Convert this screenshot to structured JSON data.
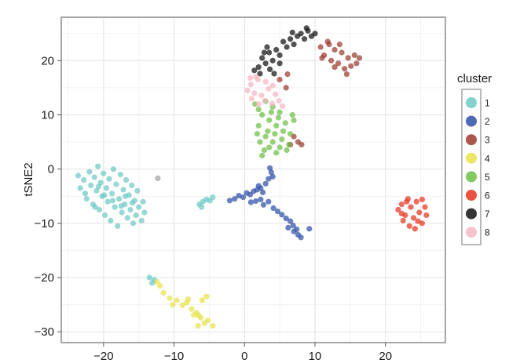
{
  "chart_data": {
    "type": "scatter",
    "title": "",
    "xlabel": "",
    "ylabel": "tSNE2",
    "xlim": [
      -26,
      28.5
    ],
    "ylim": [
      -32,
      28
    ],
    "xticks": [
      -20,
      -10,
      0,
      10,
      20
    ],
    "yticks": [
      20,
      10,
      0,
      -10,
      -20,
      -30
    ],
    "xtick_labels": [
      "−20",
      "−10",
      "0",
      "10",
      "20"
    ],
    "ytick_labels": [
      "20",
      "10",
      "0",
      "−10",
      "−20",
      "−30"
    ],
    "grid": true,
    "legend": {
      "title": "cluster",
      "position": "right",
      "entries": [
        {
          "label": "1",
          "color": "#6ec9c4"
        },
        {
          "label": "2",
          "color": "#2f4fa8"
        },
        {
          "label": "3",
          "color": "#9b3a2e"
        },
        {
          "label": "4",
          "color": "#e8e24a"
        },
        {
          "label": "5",
          "color": "#6cbf45"
        },
        {
          "label": "6",
          "color": "#e8331f"
        },
        {
          "label": "7",
          "color": "#111111"
        },
        {
          "label": "8",
          "color": "#f6b6c4"
        }
      ]
    },
    "series": [
      {
        "name": "1",
        "color": "#6ec9c4",
        "points": [
          [
            -23.3,
            -3.5
          ],
          [
            -22.8,
            -2
          ],
          [
            -22.4,
            -5.5
          ],
          [
            -22,
            -0.5
          ],
          [
            -21.8,
            -3
          ],
          [
            -21.5,
            -6.5
          ],
          [
            -21.3,
            -1.5
          ],
          [
            -21,
            -4
          ],
          [
            -20.8,
            0.5
          ],
          [
            -20.6,
            -7.5
          ],
          [
            -20.4,
            -2.5
          ],
          [
            -20.2,
            -5
          ],
          [
            -20,
            -0.8
          ],
          [
            -19.8,
            -8.5
          ],
          [
            -19.6,
            -3.5
          ],
          [
            -19.4,
            -6
          ],
          [
            -19.2,
            -1.8
          ],
          [
            -19,
            -9.5
          ],
          [
            -18.8,
            -4.5
          ],
          [
            -18.6,
            0
          ],
          [
            -18.4,
            -7
          ],
          [
            -18.2,
            -2.8
          ],
          [
            -18,
            -10.5
          ],
          [
            -17.8,
            -5.5
          ],
          [
            -17.6,
            -1
          ],
          [
            -17.4,
            -8
          ],
          [
            -17.2,
            -3.8
          ],
          [
            -17,
            -6.5
          ],
          [
            -16.8,
            -2
          ],
          [
            -16.6,
            -9
          ],
          [
            -16.4,
            -4.8
          ],
          [
            -16.2,
            -7.5
          ],
          [
            -16,
            -3
          ],
          [
            -15.8,
            -10
          ],
          [
            -15.6,
            -5.8
          ],
          [
            -15.4,
            -8.5
          ],
          [
            -15.2,
            -4
          ],
          [
            -15,
            -7
          ],
          [
            -14.6,
            -9.5
          ],
          [
            -14.4,
            -6
          ],
          [
            -22.6,
            -4.5
          ],
          [
            -21.2,
            -7
          ],
          [
            -19.9,
            -4.8
          ],
          [
            -18.7,
            -5.8
          ],
          [
            -17.5,
            -6.8
          ],
          [
            -16.9,
            -5
          ],
          [
            -20.7,
            -3.2
          ],
          [
            -23.6,
            -1.2
          ],
          [
            -14.2,
            -8
          ],
          [
            -15.9,
            -6.2
          ],
          [
            -13.5,
            -20
          ],
          [
            -13.1,
            -21
          ],
          [
            -12.8,
            -20.4
          ],
          [
            -6.4,
            -6.5
          ],
          [
            -5.9,
            -6
          ],
          [
            -5.4,
            -5.6
          ],
          [
            -4.9,
            -5.8
          ],
          [
            -4.5,
            -5.2
          ],
          [
            -6.1,
            -7
          ]
        ]
      },
      {
        "name": "2",
        "color": "#2f4fa8",
        "points": [
          [
            -2.1,
            -5.8
          ],
          [
            -1.4,
            -5.5
          ],
          [
            -0.8,
            -4.9
          ],
          [
            -0.2,
            -5.2
          ],
          [
            0.3,
            -4.4
          ],
          [
            0.8,
            -4.7
          ],
          [
            1.3,
            -4.1
          ],
          [
            1.8,
            -3.8
          ],
          [
            2.3,
            -3.5
          ],
          [
            2.6,
            -4.3
          ],
          [
            3,
            -2.7
          ],
          [
            3.4,
            -1.8
          ],
          [
            3.8,
            -0.6
          ],
          [
            4,
            -1.4
          ],
          [
            3.6,
            0.2
          ],
          [
            2.3,
            -5.6
          ],
          [
            2.7,
            -6.6
          ],
          [
            3.4,
            -6
          ],
          [
            4.1,
            -7.2
          ],
          [
            4.7,
            -7.8
          ],
          [
            5.3,
            -8.4
          ],
          [
            5.9,
            -9.1
          ],
          [
            6.5,
            -9.6
          ],
          [
            6.9,
            -10.4
          ],
          [
            7.4,
            -11.1
          ],
          [
            7.6,
            -12.1
          ],
          [
            7,
            -11.5
          ],
          [
            8,
            -12.6
          ],
          [
            9.2,
            -11
          ],
          [
            6.2,
            -10.8
          ],
          [
            0.9,
            -6.1
          ],
          [
            1.6,
            -5.9
          ],
          [
            2,
            -3.1
          ]
        ]
      },
      {
        "name": "3",
        "color": "#9b3a2e",
        "points": [
          [
            10.8,
            22.5
          ],
          [
            11.3,
            21
          ],
          [
            11.8,
            23.5
          ],
          [
            12.3,
            20
          ],
          [
            12.8,
            22
          ],
          [
            13.3,
            19.5
          ],
          [
            13.8,
            21.5
          ],
          [
            14.2,
            18.5
          ],
          [
            14.7,
            20.5
          ],
          [
            15.1,
            19
          ],
          [
            15.6,
            21
          ],
          [
            15.9,
            19.5
          ],
          [
            16.3,
            20.5
          ],
          [
            12,
            23
          ],
          [
            13.5,
            23
          ],
          [
            11,
            20.5
          ],
          [
            14.5,
            17.5
          ],
          [
            12.8,
            18.8
          ],
          [
            7,
            6
          ],
          [
            7.6,
            5
          ],
          [
            8.1,
            4.5
          ],
          [
            6.5,
            4.5
          ],
          [
            5,
            16.5
          ],
          [
            5.9,
            15
          ],
          [
            6.1,
            17.5
          ]
        ]
      },
      {
        "name": "4",
        "color": "#e8e24a",
        "points": [
          [
            -12,
            -21.5
          ],
          [
            -11.5,
            -22.8
          ],
          [
            -10.6,
            -23.8
          ],
          [
            -9.6,
            -24.2
          ],
          [
            -8.8,
            -25.1
          ],
          [
            -8.2,
            -24.6
          ],
          [
            -7.5,
            -25.8
          ],
          [
            -6.8,
            -26.5
          ],
          [
            -6.2,
            -27.4
          ],
          [
            -5.7,
            -28.4
          ],
          [
            -5.2,
            -27.9
          ],
          [
            -6.6,
            -28.9
          ],
          [
            -7.2,
            -26.9
          ],
          [
            -5.4,
            -23.5
          ],
          [
            -6,
            -24.2
          ],
          [
            -4.5,
            -28.9
          ],
          [
            -12.4,
            -20.8
          ],
          [
            -10.2,
            -25
          ],
          [
            -8,
            -24
          ],
          [
            -6.5,
            -27
          ]
        ]
      },
      {
        "name": "5",
        "color": "#6cbf45",
        "points": [
          [
            2,
            8
          ],
          [
            2.5,
            10
          ],
          [
            3,
            6
          ],
          [
            3.5,
            9
          ],
          [
            4,
            5
          ],
          [
            4.5,
            8
          ],
          [
            5,
            4
          ],
          [
            5.5,
            7
          ],
          [
            6,
            3.5
          ],
          [
            6.5,
            6.5
          ],
          [
            7,
            9
          ],
          [
            2.2,
            5
          ],
          [
            2.8,
            3.5
          ],
          [
            3.3,
            7
          ],
          [
            3.8,
            10.5
          ],
          [
            4.3,
            6.5
          ],
          [
            4.8,
            9.5
          ],
          [
            5.3,
            5.5
          ],
          [
            5.8,
            8.5
          ],
          [
            6.3,
            4.5
          ],
          [
            2,
            11
          ],
          [
            3.5,
            4
          ],
          [
            4,
            11.5
          ],
          [
            5,
            10.5
          ],
          [
            1.5,
            12
          ],
          [
            3,
            12.5
          ],
          [
            4.5,
            3
          ],
          [
            2.5,
            2.5
          ],
          [
            6.8,
            10
          ],
          [
            1.8,
            6.5
          ]
        ]
      },
      {
        "name": "6",
        "color": "#e8331f",
        "points": [
          [
            21.8,
            -7.5
          ],
          [
            22.3,
            -6.5
          ],
          [
            22.8,
            -8.5
          ],
          [
            23.2,
            -5.5
          ],
          [
            23.6,
            -7
          ],
          [
            24,
            -9
          ],
          [
            24.4,
            -6
          ],
          [
            24.8,
            -8
          ],
          [
            25.2,
            -10
          ],
          [
            25.6,
            -7
          ],
          [
            23.4,
            -10.5
          ],
          [
            22.5,
            -9.5
          ],
          [
            24.2,
            -11
          ],
          [
            25.2,
            -5.6
          ],
          [
            23,
            -6
          ],
          [
            25.8,
            -8.5
          ],
          [
            22.3,
            -8.2
          ],
          [
            24.6,
            -9.6
          ]
        ]
      },
      {
        "name": "7",
        "color": "#111111",
        "points": [
          [
            2,
            18.8
          ],
          [
            2.5,
            20.5
          ],
          [
            3,
            19.5
          ],
          [
            3.5,
            21.5
          ],
          [
            4,
            20
          ],
          [
            4.5,
            22
          ],
          [
            5,
            21
          ],
          [
            5.5,
            23.5
          ],
          [
            6,
            22.5
          ],
          [
            6.5,
            24
          ],
          [
            7,
            23
          ],
          [
            7.5,
            24.5
          ],
          [
            8,
            25
          ],
          [
            8.5,
            24
          ],
          [
            9,
            25.5
          ],
          [
            9.5,
            24.5
          ],
          [
            10,
            25
          ],
          [
            2.2,
            17.6
          ],
          [
            3.6,
            18.4
          ],
          [
            1.4,
            18.2
          ],
          [
            4.2,
            17.6
          ],
          [
            5,
            19.5
          ],
          [
            6.8,
            25.2
          ],
          [
            8.8,
            26
          ],
          [
            3.2,
            22.5
          ],
          [
            2.8,
            21.5
          ]
        ]
      },
      {
        "name": "8",
        "color": "#f6b6c4",
        "points": [
          [
            0.4,
            14.5
          ],
          [
            0.9,
            15.6
          ],
          [
            1.4,
            14
          ],
          [
            1.9,
            16.5
          ],
          [
            2.4,
            13.6
          ],
          [
            2.9,
            12.6
          ],
          [
            3.4,
            14.8
          ],
          [
            3.9,
            12.1
          ],
          [
            4.4,
            13.8
          ],
          [
            4.9,
            12.6
          ],
          [
            5.4,
            11.6
          ],
          [
            1,
            13
          ],
          [
            2,
            12
          ],
          [
            3,
            16.1
          ],
          [
            1.6,
            17
          ],
          [
            4,
            15.4
          ],
          [
            0.8,
            16.8
          ]
        ]
      },
      {
        "name": "",
        "color": "#9e9e9e",
        "points": [
          [
            -12.3,
            -1.7
          ]
        ]
      }
    ]
  }
}
